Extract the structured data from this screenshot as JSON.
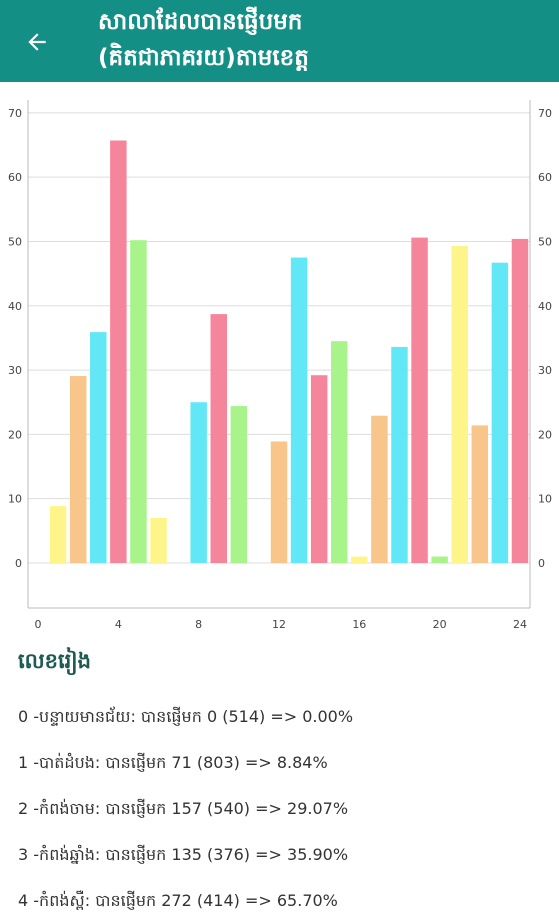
{
  "appbar": {
    "title_line1": "សាលាដែលបានផ្ញើបមក",
    "title_line2": "(គិតជាភាគរយ)តាមខេត្ត",
    "color": "#138f86"
  },
  "chart_data": {
    "type": "bar",
    "x": [
      1,
      2,
      3,
      4,
      5,
      6,
      7,
      8,
      9,
      10,
      11,
      12,
      13,
      14,
      15,
      16,
      17,
      18,
      19,
      20,
      21,
      22,
      23,
      24
    ],
    "values": [
      8.84,
      29.07,
      35.9,
      65.7,
      50.2,
      7.0,
      0.0,
      25.0,
      38.7,
      24.4,
      0.0,
      18.9,
      47.5,
      29.2,
      34.5,
      1.0,
      22.9,
      33.6,
      50.6,
      1.0,
      49.3,
      21.4,
      46.7,
      50.4
    ],
    "colors": [
      "#fdf58a",
      "#f8c58a",
      "#62e7f7",
      "#f4859a",
      "#a8f48a"
    ],
    "xlim": [
      -0.5,
      24.5
    ],
    "ylim": [
      -7,
      72
    ],
    "x_ticks": [
      "0",
      "4",
      "8",
      "12",
      "16",
      "20",
      "24"
    ],
    "y_ticks": [
      "0",
      "10",
      "20",
      "30",
      "40",
      "50",
      "60",
      "70"
    ],
    "dual_y_axis": true,
    "grid": true
  },
  "legend": {
    "title": "លេខរៀង",
    "items": [
      "0 -បន្ទាយមានជ័យ: បានផ្ញើមក  0 (514) => 0.00%",
      "1 -បាត់ដំបង: បានផ្ញើមក  71 (803) => 8.84%",
      "2 -កំពង់ចាម: បានផ្ញើមក  157 (540) => 29.07%",
      "3 -កំពង់ឆ្នាំង: បានផ្ញើមក  135 (376) => 35.90%",
      "4 -កំពង់ស្ពឺ: បានផ្ញើមក  272 (414) => 65.70%"
    ]
  }
}
